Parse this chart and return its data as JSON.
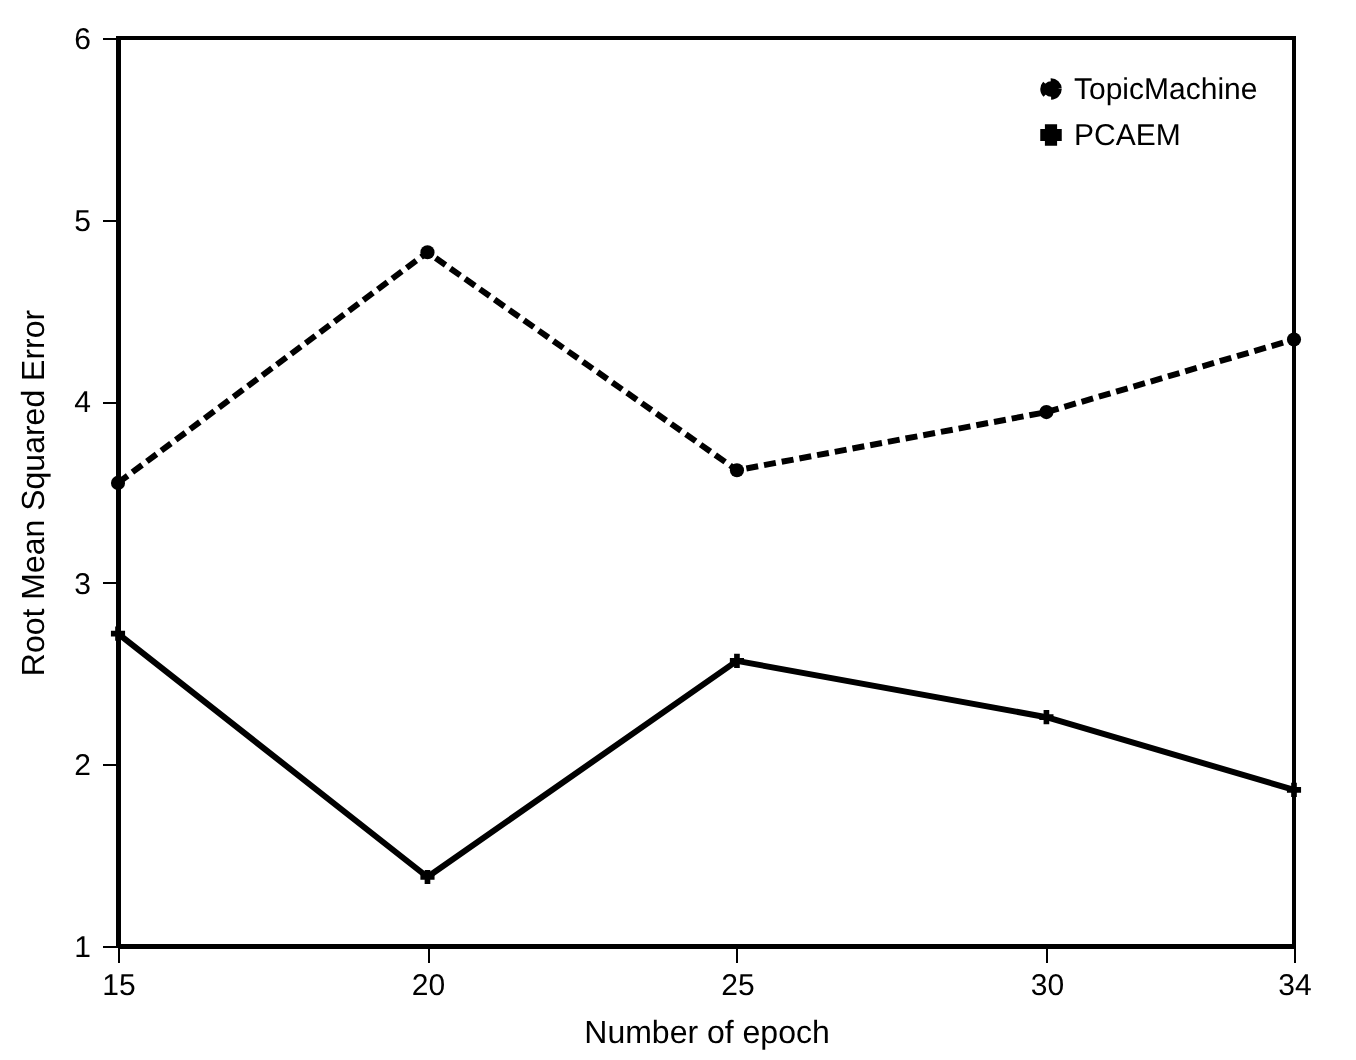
{
  "chart_data": {
    "type": "line",
    "xlabel": "Number of epoch",
    "ylabel": "Root Mean Squared Error",
    "x": [
      15,
      20,
      25,
      30,
      34
    ],
    "series": [
      {
        "name": "TopicMachine",
        "color": "#000000",
        "line_style": "dashed",
        "marker": "circle",
        "values": [
          3.55,
          4.82,
          3.62,
          3.94,
          4.34
        ]
      },
      {
        "name": "PCAEM",
        "color": "#000000",
        "line_style": "solid",
        "marker": "cross",
        "values": [
          2.72,
          1.38,
          2.57,
          2.26,
          1.86
        ]
      }
    ],
    "xlim": [
      15,
      34
    ],
    "xticks": [
      15,
      20,
      25,
      30,
      34
    ],
    "ylim": [
      1,
      6
    ],
    "yticks": [
      1,
      2,
      3,
      4,
      5,
      6
    ],
    "grid": false,
    "legend": "top right"
  }
}
